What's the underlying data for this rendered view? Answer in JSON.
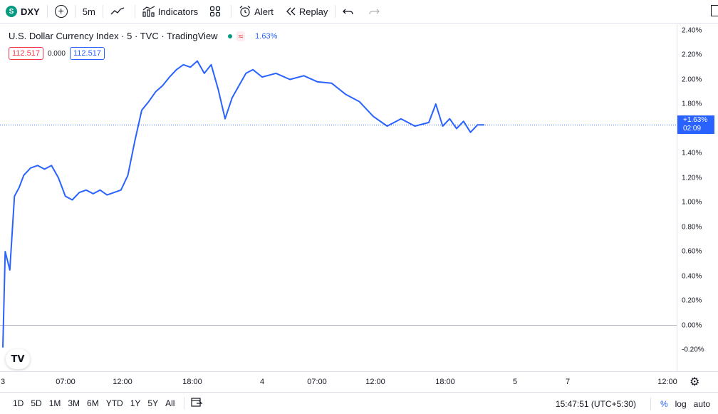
{
  "toolbar": {
    "symbol_badge": "S",
    "symbol": "DXY",
    "interval": "5m",
    "indicators_label": "Indicators",
    "alert_label": "Alert",
    "replay_label": "Replay"
  },
  "legend": {
    "title": "U.S. Dollar Currency Index · 5 · TVC · TradingView",
    "approx_symbol": "≈",
    "change_pct": "1.63%",
    "bid": "112.517",
    "spread": "0.000",
    "ask": "112.517"
  },
  "logo_text": "TV",
  "price_scale": {
    "ticks": [
      "2.40%",
      "2.20%",
      "2.00%",
      "1.80%",
      "1.40%",
      "1.20%",
      "1.00%",
      "0.80%",
      "0.60%",
      "0.40%",
      "0.20%",
      "0.00%",
      "-0.20%"
    ],
    "last_value": "+1.63%",
    "countdown": "02:09"
  },
  "time_scale": {
    "ticks": [
      "3",
      "07:00",
      "12:00",
      "18:00",
      "4",
      "07:00",
      "12:00",
      "18:00",
      "5",
      "7",
      "12:00"
    ]
  },
  "bottom_bar": {
    "ranges": [
      "1D",
      "5D",
      "1M",
      "3M",
      "6M",
      "YTD",
      "1Y",
      "5Y",
      "All"
    ],
    "clock": "15:47:51 (UTC+5:30)",
    "pct_label": "%",
    "log_label": "log",
    "auto_label": "auto"
  },
  "colors": {
    "line": "#2962ff",
    "last_tag": "#2962ff",
    "badge": "#089981",
    "bid_border": "#f23645",
    "ask_border": "#2962ff"
  },
  "chart_data": {
    "type": "line",
    "title": "U.S. Dollar Currency Index · 5 · TVC · TradingView",
    "ylabel": "",
    "y_unit": "%",
    "ylim": [
      -0.2,
      2.4
    ],
    "grid": false,
    "log_scale": false,
    "x_labels": [
      "3",
      "07:00",
      "12:00",
      "18:00",
      "4",
      "07:00",
      "12:00",
      "18:00",
      "5",
      "7",
      "12:00"
    ],
    "series": [
      {
        "name": "",
        "x": [
          "3 05:30",
          "3 05:40",
          "3 06:00",
          "3 06:20",
          "3 06:40",
          "3 07:00",
          "3 07:30",
          "3 08:00",
          "3 08:30",
          "3 09:00",
          "3 09:30",
          "3 10:00",
          "3 10:30",
          "3 11:00",
          "3 11:30",
          "3 12:00",
          "3 12:30",
          "3 13:00",
          "3 13:30",
          "3 14:00",
          "3 14:30",
          "3 15:00",
          "3 15:30",
          "3 16:00",
          "3 16:30",
          "3 17:00",
          "3 17:30",
          "3 18:00",
          "3 18:30",
          "3 19:00",
          "3 19:30",
          "3 20:00",
          "3 20:30",
          "3 21:00",
          "3 21:30",
          "3 22:00",
          "3 22:30",
          "3 23:00",
          "3 23:30",
          "4 00:00",
          "4 01:00",
          "4 02:00",
          "4 03:00",
          "4 04:00",
          "4 05:00",
          "4 06:00",
          "4 07:00",
          "4 08:00",
          "4 09:00",
          "4 10:00",
          "4 11:00",
          "4 12:00",
          "4 12:30",
          "4 13:00",
          "4 13:30",
          "4 14:00",
          "4 14:30",
          "4 15:00",
          "4 15:30",
          "4 16:00"
        ],
        "y": [
          -0.18,
          0.6,
          0.45,
          1.05,
          1.12,
          1.22,
          1.28,
          1.3,
          1.27,
          1.3,
          1.2,
          1.05,
          1.02,
          1.08,
          1.1,
          1.07,
          1.1,
          1.06,
          1.08,
          1.1,
          1.22,
          1.5,
          1.75,
          1.82,
          1.9,
          1.95,
          2.02,
          2.08,
          2.12,
          2.1,
          2.15,
          2.05,
          2.12,
          1.92,
          1.68,
          1.85,
          1.95,
          2.05,
          2.08,
          2.02,
          2.05,
          2.0,
          2.03,
          1.98,
          1.97,
          1.88,
          1.82,
          1.7,
          1.62,
          1.68,
          1.62,
          1.65,
          1.8,
          1.62,
          1.68,
          1.6,
          1.66,
          1.57,
          1.63,
          1.63
        ]
      }
    ]
  }
}
